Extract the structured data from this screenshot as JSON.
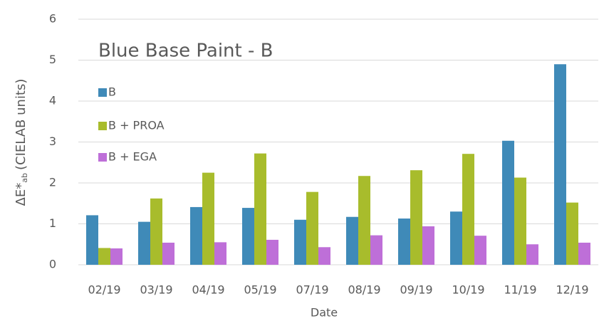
{
  "chart_data": {
    "type": "bar",
    "title": "Blue Base Paint - B",
    "xlabel": "Date",
    "ylabel_parts": [
      "ΔE*",
      "ab",
      "(CIELAB units)"
    ],
    "categories": [
      "02/19",
      "03/19",
      "04/19",
      "05/19",
      "07/19",
      "08/19",
      "09/19",
      "10/19",
      "11/19",
      "12/19"
    ],
    "series": [
      {
        "name": "B",
        "color": "#3f8ab8",
        "values": [
          1.21,
          1.05,
          1.41,
          1.39,
          1.1,
          1.17,
          1.13,
          1.3,
          3.03,
          4.9
        ]
      },
      {
        "name": "B + PROA",
        "color": "#a8bc2c",
        "values": [
          0.41,
          1.62,
          2.25,
          2.72,
          1.78,
          2.17,
          2.31,
          2.71,
          2.13,
          1.52
        ]
      },
      {
        "name": "B + EGA",
        "color": "#be6fd8",
        "values": [
          0.4,
          0.54,
          0.55,
          0.61,
          0.43,
          0.72,
          0.94,
          0.71,
          0.5,
          0.54
        ]
      }
    ],
    "ylim": [
      0,
      6
    ],
    "yticks": [
      0,
      1,
      2,
      3,
      4,
      5,
      6
    ],
    "grid": true,
    "legend": "upper left"
  }
}
